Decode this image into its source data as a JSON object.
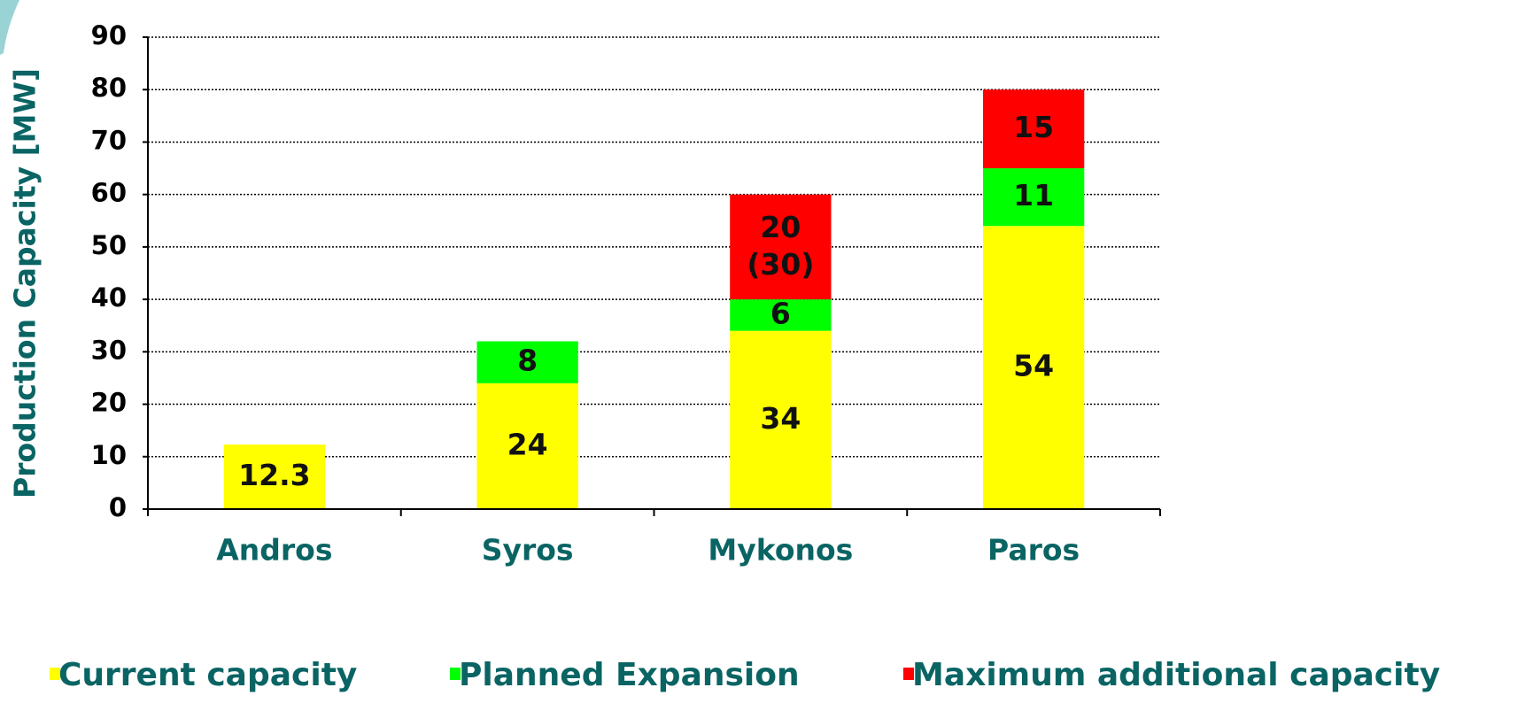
{
  "chart_data": {
    "type": "stacked_bar",
    "y_label": "Production Capacity [MW]",
    "categories": [
      "Andros",
      "Syros",
      "Mykonos",
      "Paros"
    ],
    "series": [
      {
        "name": "Current capacity",
        "color": "#ffff00",
        "values": [
          12.3,
          24,
          34,
          54
        ]
      },
      {
        "name": "Planned Expansion",
        "color": "#00ff00",
        "values": [
          null,
          8,
          6,
          11
        ]
      },
      {
        "name": "Maximum additional capacity",
        "color": "#ff0000",
        "values": [
          null,
          null,
          20,
          15
        ],
        "value_labels": [
          null,
          null,
          "20 (30)",
          null
        ]
      }
    ],
    "ylim": [
      0,
      90
    ],
    "yticks": [
      0,
      10,
      20,
      30,
      40,
      50,
      60,
      70,
      80,
      90
    ],
    "grid": true
  }
}
